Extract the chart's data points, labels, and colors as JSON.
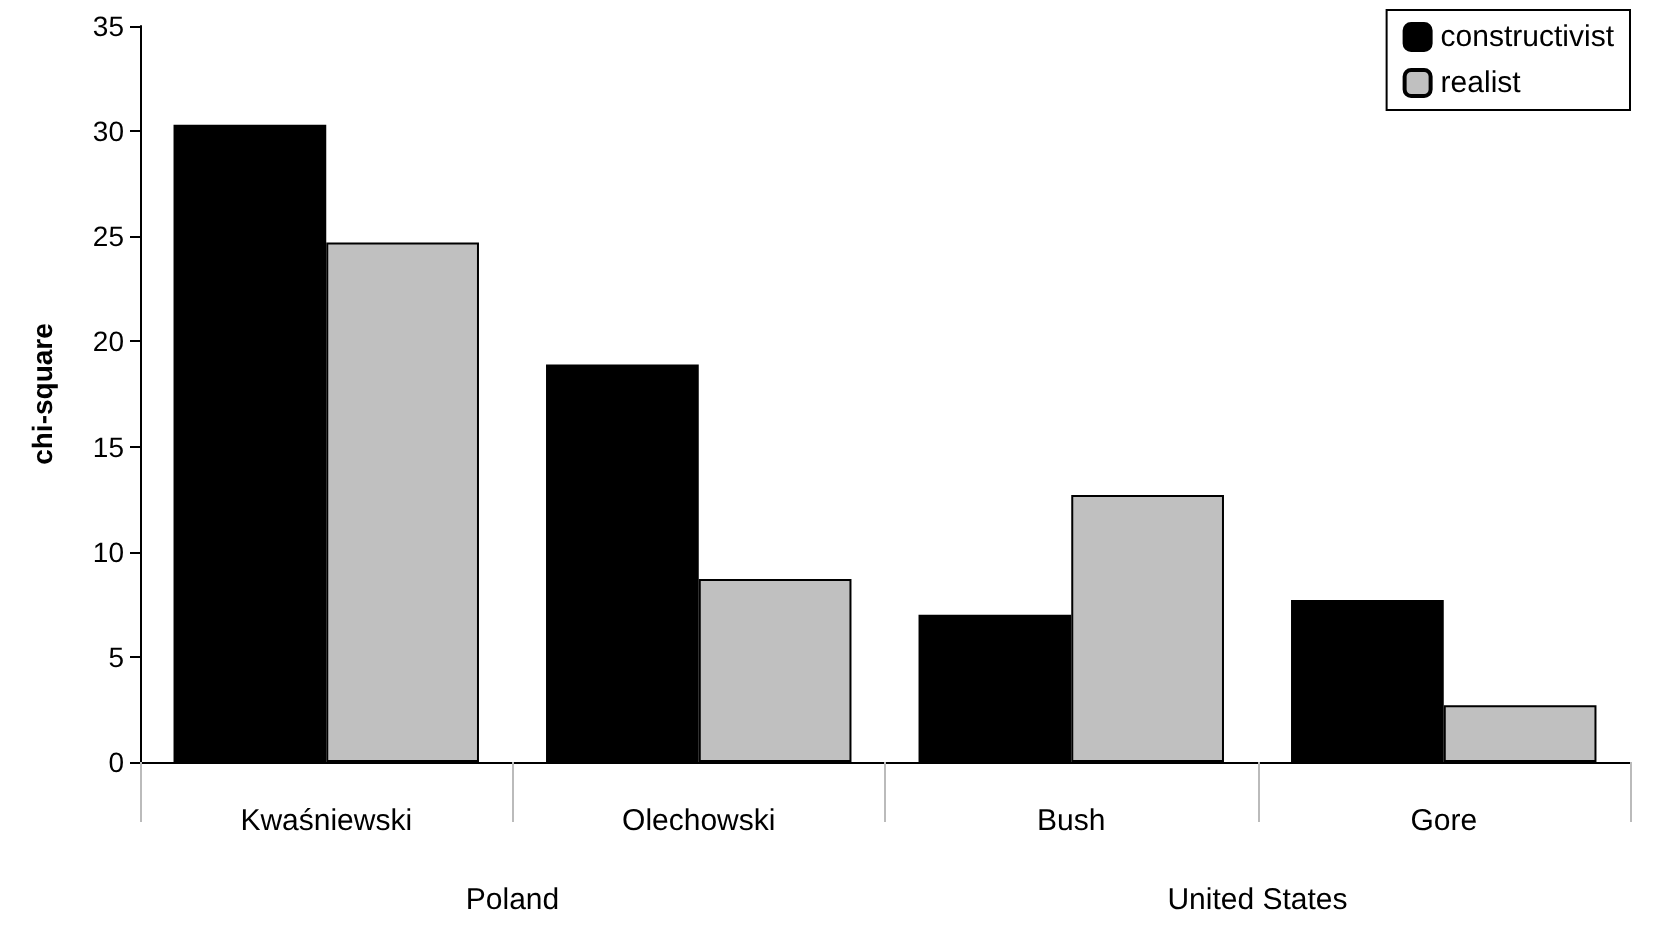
{
  "chart_data": {
    "type": "bar",
    "ylabel": "chi-square",
    "categories": [
      "Kwaśniewski",
      "Olechowski",
      "Bush",
      "Gore"
    ],
    "series": [
      {
        "name": "constructivist",
        "color": "#000000",
        "values": [
          30.3,
          18.9,
          7.0,
          7.7
        ]
      },
      {
        "name": "realist",
        "color": "#c0c0c0",
        "values": [
          24.7,
          8.7,
          12.7,
          2.7
        ]
      }
    ],
    "ylim": [
      0,
      35
    ],
    "yticks": [
      0,
      5,
      10,
      15,
      20,
      25,
      30,
      35
    ],
    "grid": false,
    "legend": "top right",
    "annotations": [
      "Poland",
      "United States"
    ]
  }
}
